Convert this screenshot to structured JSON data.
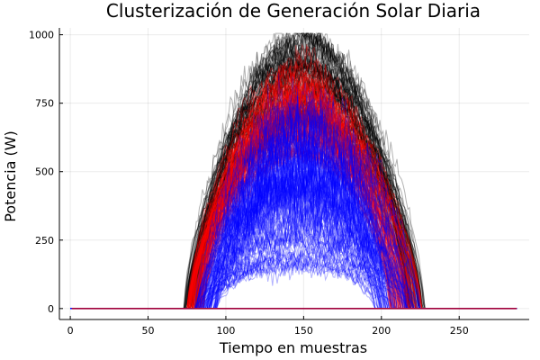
{
  "chart_data": {
    "type": "line",
    "title": "Clusterización de Generación Solar Diaria",
    "xlabel": "Tiempo en muestras",
    "ylabel": "Potencia (W)",
    "xlim": [
      -7,
      295
    ],
    "ylim": [
      -40,
      1025
    ],
    "xticks": [
      0,
      50,
      100,
      150,
      200,
      250
    ],
    "yticks": [
      0,
      250,
      500,
      750,
      1000
    ],
    "grid": true,
    "legend": "none",
    "samples": 288,
    "series": [
      {
        "color": "#000000",
        "count": 110,
        "line_alpha": 0.3,
        "peak_range": [
          680,
          1000
        ],
        "start_range": [
          73,
          82
        ],
        "end_range": [
          215,
          228
        ]
      },
      {
        "color": "#ff0000",
        "count": 140,
        "line_alpha": 0.3,
        "peak_range": [
          560,
          880
        ],
        "start_range": [
          75,
          86
        ],
        "end_range": [
          205,
          226
        ]
      },
      {
        "color": "#0000ff",
        "count": 110,
        "line_alpha": 0.3,
        "peak_range": [
          150,
          720
        ],
        "start_range": [
          80,
          95
        ],
        "end_range": [
          195,
          225
        ]
      }
    ],
    "zero_line_color": "#a0003c"
  }
}
